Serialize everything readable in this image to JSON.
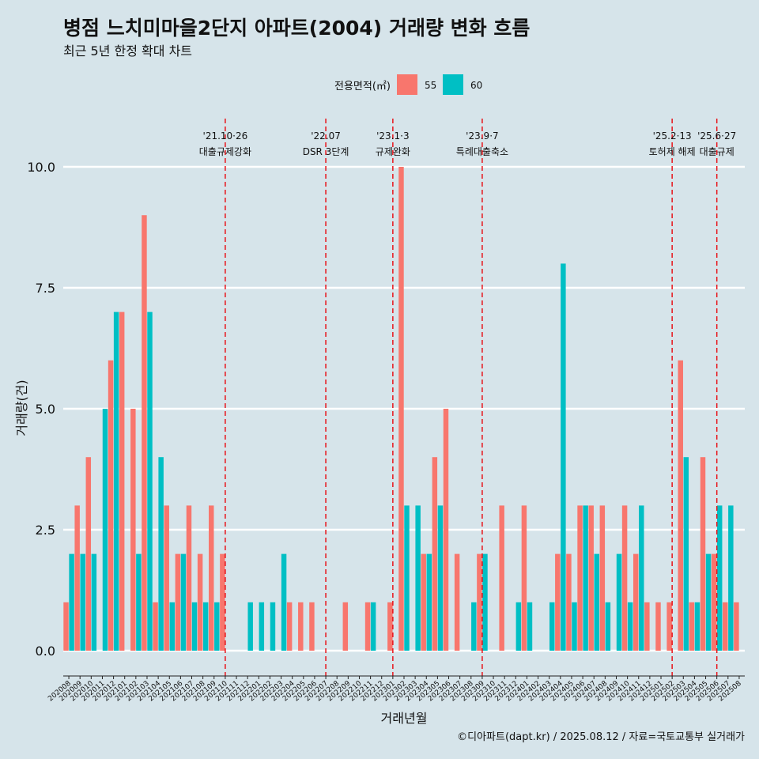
{
  "chart_data": {
    "type": "bar",
    "title": "병점 느치미마을2단지 아파트(2004) 거래량 변화 흐름",
    "subtitle": "최근 5년 한정 확대 차트",
    "xlabel": "거래년월",
    "ylabel": "거래량(건)",
    "caption": "©디아파트(dapt.kr) / 2025.08.12 / 자료=국토교통부 실거래가",
    "legend_title": "전용면적(㎡)",
    "legend_position": "top",
    "ylim": [
      0,
      10
    ],
    "yticks": [
      0.0,
      2.5,
      5.0,
      7.5,
      10.0
    ],
    "ytick_labels": [
      "0.0",
      "2.5",
      "5.0",
      "7.5",
      "10.0"
    ],
    "categories": [
      "202008",
      "202009",
      "202010",
      "202011",
      "202012",
      "202101",
      "202102",
      "202103",
      "202104",
      "202105",
      "202106",
      "202107",
      "202108",
      "202109",
      "202110",
      "202111",
      "202112",
      "202201",
      "202202",
      "202203",
      "202204",
      "202205",
      "202206",
      "202207",
      "202208",
      "202209",
      "202210",
      "202211",
      "202212",
      "202301",
      "202302",
      "202303",
      "202304",
      "202305",
      "202306",
      "202307",
      "202308",
      "202309",
      "202310",
      "202311",
      "202312",
      "202401",
      "202402",
      "202403",
      "202404",
      "202405",
      "202406",
      "202407",
      "202408",
      "202409",
      "202410",
      "202411",
      "202412",
      "202501",
      "202502",
      "202503",
      "202504",
      "202505",
      "202506",
      "202507",
      "202508"
    ],
    "series": [
      {
        "name": "55",
        "color": "#f8766d",
        "values": [
          1,
          3,
          4,
          0,
          6,
          7,
          5,
          9,
          1,
          3,
          2,
          3,
          2,
          3,
          2,
          0,
          0,
          0,
          0,
          0,
          1,
          1,
          1,
          0,
          0,
          1,
          0,
          1,
          0,
          1,
          10,
          0,
          2,
          4,
          5,
          2,
          0,
          2,
          0,
          3,
          0,
          3,
          0,
          0,
          2,
          2,
          3,
          3,
          3,
          0,
          3,
          2,
          1,
          1,
          1,
          6,
          1,
          4,
          2,
          1,
          1
        ]
      },
      {
        "name": "60",
        "color": "#00bfc4",
        "values": [
          2,
          2,
          2,
          5,
          7,
          0,
          2,
          7,
          4,
          1,
          2,
          1,
          1,
          1,
          0,
          0,
          1,
          1,
          1,
          2,
          0,
          0,
          0,
          0,
          0,
          0,
          0,
          1,
          0,
          0,
          3,
          3,
          2,
          3,
          0,
          0,
          1,
          2,
          0,
          0,
          1,
          1,
          0,
          1,
          8,
          1,
          3,
          2,
          1,
          2,
          1,
          3,
          0,
          0,
          0,
          4,
          1,
          2,
          3,
          3,
          0
        ]
      }
    ],
    "annotations": [
      {
        "x": "202110",
        "date": "'21.10·26",
        "label": "대출규제강화"
      },
      {
        "x": "202207",
        "date": "'22.07",
        "label": "DSR 3단계"
      },
      {
        "x": "202301",
        "date": "'23.1·3",
        "label": "규제완화"
      },
      {
        "x": "202309",
        "date": "'23.9·7",
        "label": "특례대출축소"
      },
      {
        "x": "202502",
        "date": "'25.2·13",
        "label": "토허제 해제"
      },
      {
        "x": "202506",
        "date": "'25.6·27",
        "label": "대출규제"
      }
    ]
  }
}
